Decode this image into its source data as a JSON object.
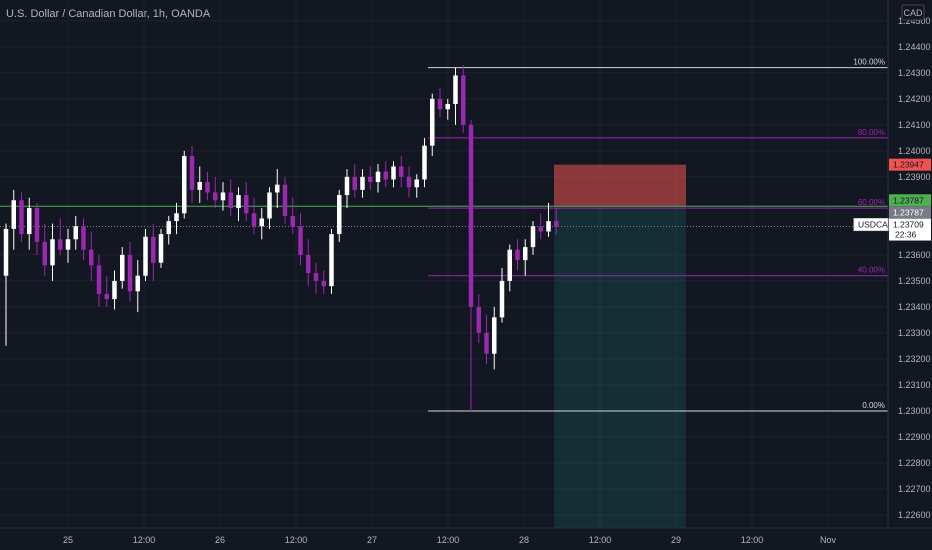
{
  "header": {
    "title": "U.S. Dollar / Canadian Dollar, 1h, OANDA",
    "currency": "CAD"
  },
  "colors": {
    "background": "#131722",
    "bull": "#ffffff",
    "bear": "#9c27b0",
    "green": "#4caf50",
    "red": "#ef5350",
    "fib": "#9c27b0",
    "grid": "#1e222d",
    "text": "#b2b5be"
  },
  "chart_data": {
    "type": "candlestick",
    "ylim": [
      1.2255,
      1.2458
    ],
    "price_ticks": [
      "1.24500",
      "1.24400",
      "1.24300",
      "1.24200",
      "1.24100",
      "1.24000",
      "1.23900",
      "1.23600",
      "1.23500",
      "1.23400",
      "1.23300",
      "1.23200",
      "1.23100",
      "1.23000",
      "1.22900",
      "1.22800",
      "1.22700",
      "1.22600"
    ],
    "time_ticks": [
      "25",
      "12:00",
      "26",
      "12:00",
      "27",
      "12:00",
      "28",
      "12:00",
      "29",
      "12:00",
      "Nov"
    ],
    "fib_levels": [
      {
        "label": "100.00%",
        "price": 1.2432
      },
      {
        "label": "80.00%",
        "price": 1.2405
      },
      {
        "label": "60.00%",
        "price": 1.2378
      },
      {
        "label": "40.00%",
        "price": 1.2352
      },
      {
        "label": "0.00%",
        "price": 1.23
      }
    ],
    "tags": {
      "stop": {
        "price_text": "1.23947",
        "price": 1.23947
      },
      "entry": {
        "price_text": "1.23787",
        "price": 1.23787
      },
      "entry2": {
        "price_text": "1.23787"
      },
      "last": {
        "symbol": "USDCAD",
        "price_text": "1.23709",
        "countdown": "22:36",
        "price": 1.23709
      }
    },
    "candles": [
      [
        1.2352,
        1.2372,
        1.2325,
        1.237
      ],
      [
        1.237,
        1.2385,
        1.2362,
        1.2381
      ],
      [
        1.2381,
        1.2384,
        1.2365,
        1.2368
      ],
      [
        1.2368,
        1.2382,
        1.2362,
        1.2378
      ],
      [
        1.2378,
        1.238,
        1.236,
        1.2365
      ],
      [
        1.2365,
        1.2372,
        1.2352,
        1.2356
      ],
      [
        1.2356,
        1.2372,
        1.235,
        1.2366
      ],
      [
        1.2366,
        1.2374,
        1.236,
        1.2362
      ],
      [
        1.2362,
        1.237,
        1.2357,
        1.2366
      ],
      [
        1.2366,
        1.2375,
        1.2362,
        1.2371
      ],
      [
        1.2371,
        1.2374,
        1.2358,
        1.2362
      ],
      [
        1.2362,
        1.2369,
        1.235,
        1.2356
      ],
      [
        1.2356,
        1.236,
        1.234,
        1.2345
      ],
      [
        1.2345,
        1.2352,
        1.234,
        1.2343
      ],
      [
        1.2343,
        1.2354,
        1.2339,
        1.235
      ],
      [
        1.235,
        1.2363,
        1.2347,
        1.236
      ],
      [
        1.236,
        1.2365,
        1.2342,
        1.2346
      ],
      [
        1.2346,
        1.2358,
        1.2338,
        1.2352
      ],
      [
        1.2352,
        1.237,
        1.235,
        1.2367
      ],
      [
        1.2367,
        1.2372,
        1.235,
        1.2357
      ],
      [
        1.2357,
        1.237,
        1.2355,
        1.2368
      ],
      [
        1.2368,
        1.2375,
        1.2364,
        1.2373
      ],
      [
        1.2373,
        1.238,
        1.2368,
        1.2376
      ],
      [
        1.2376,
        1.24,
        1.2374,
        1.2398
      ],
      [
        1.2398,
        1.2402,
        1.238,
        1.2385
      ],
      [
        1.2385,
        1.2394,
        1.238,
        1.2388
      ],
      [
        1.2388,
        1.2392,
        1.2381,
        1.2384
      ],
      [
        1.2384,
        1.239,
        1.2378,
        1.2381
      ],
      [
        1.2381,
        1.2388,
        1.2377,
        1.2384
      ],
      [
        1.2384,
        1.2389,
        1.2375,
        1.2378
      ],
      [
        1.2378,
        1.2386,
        1.2373,
        1.2383
      ],
      [
        1.2383,
        1.2388,
        1.2373,
        1.2376
      ],
      [
        1.2376,
        1.2382,
        1.2368,
        1.2371
      ],
      [
        1.2371,
        1.2378,
        1.2366,
        1.2374
      ],
      [
        1.2374,
        1.2386,
        1.237,
        1.2384
      ],
      [
        1.2384,
        1.2393,
        1.2378,
        1.2387
      ],
      [
        1.2387,
        1.239,
        1.2372,
        1.2375
      ],
      [
        1.2375,
        1.2382,
        1.2368,
        1.2371
      ],
      [
        1.2371,
        1.2376,
        1.2356,
        1.236
      ],
      [
        1.236,
        1.2366,
        1.2348,
        1.2353
      ],
      [
        1.2353,
        1.2357,
        1.2345,
        1.235
      ],
      [
        1.235,
        1.2354,
        1.2345,
        1.2348
      ],
      [
        1.2348,
        1.237,
        1.2345,
        1.2368
      ],
      [
        1.2368,
        1.2385,
        1.2365,
        1.2383
      ],
      [
        1.2383,
        1.2393,
        1.2378,
        1.239
      ],
      [
        1.239,
        1.2395,
        1.2382,
        1.2385
      ],
      [
        1.2385,
        1.2393,
        1.2382,
        1.239
      ],
      [
        1.239,
        1.2394,
        1.2385,
        1.2388
      ],
      [
        1.2388,
        1.2395,
        1.2384,
        1.2392
      ],
      [
        1.2392,
        1.2396,
        1.2386,
        1.2389
      ],
      [
        1.2389,
        1.2396,
        1.2386,
        1.2394
      ],
      [
        1.2394,
        1.2398,
        1.2386,
        1.239
      ],
      [
        1.239,
        1.2394,
        1.2382,
        1.2386
      ],
      [
        1.2386,
        1.2391,
        1.2382,
        1.2389
      ],
      [
        1.2389,
        1.2405,
        1.2386,
        1.2402
      ],
      [
        1.2402,
        1.2422,
        1.2398,
        1.242
      ],
      [
        1.242,
        1.2424,
        1.2413,
        1.2416
      ],
      [
        1.2416,
        1.242,
        1.2412,
        1.2418
      ],
      [
        1.2418,
        1.2432,
        1.241,
        1.2429
      ],
      [
        1.2429,
        1.2433,
        1.2407,
        1.241
      ],
      [
        1.241,
        1.2412,
        1.23,
        1.234
      ],
      [
        1.234,
        1.2345,
        1.2326,
        1.233
      ],
      [
        1.233,
        1.2337,
        1.2318,
        1.2322
      ],
      [
        1.2322,
        1.234,
        1.2316,
        1.2336
      ],
      [
        1.2336,
        1.2355,
        1.2334,
        1.235
      ],
      [
        1.235,
        1.2364,
        1.2346,
        1.2362
      ],
      [
        1.2362,
        1.2366,
        1.2354,
        1.2358
      ],
      [
        1.2358,
        1.2366,
        1.2352,
        1.2363
      ],
      [
        1.2363,
        1.2373,
        1.236,
        1.2371
      ],
      [
        1.2371,
        1.2376,
        1.2366,
        1.2369
      ],
      [
        1.2369,
        1.238,
        1.2367,
        1.2373
      ],
      [
        1.2373,
        1.2378,
        1.2368,
        1.2371
      ]
    ]
  }
}
